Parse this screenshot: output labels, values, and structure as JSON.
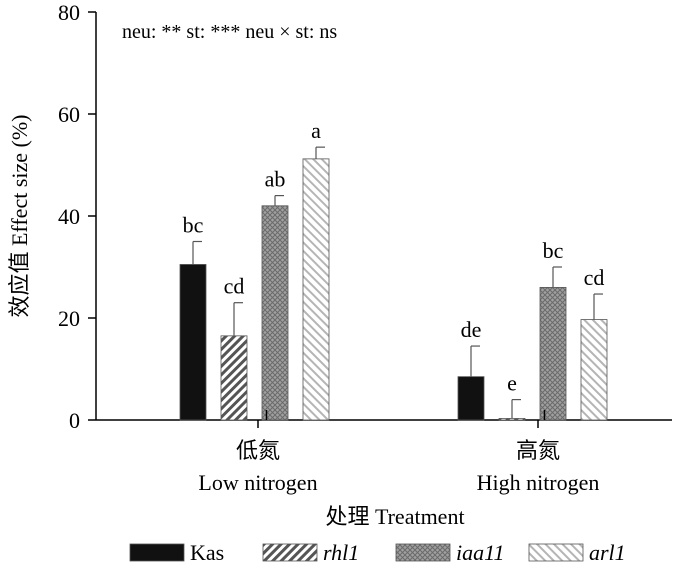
{
  "chart_data": {
    "type": "bar",
    "annotation": "neu: ** st: *** neu × st: ns",
    "ylabel": "效应值 Effect size (%)",
    "xlabel": "处理 Treatment",
    "ylim": [
      0,
      80
    ],
    "yticks": [
      "0",
      "20",
      "40",
      "60",
      "80"
    ],
    "categories": [
      {
        "cn": "低氮",
        "en": "Low nitrogen"
      },
      {
        "cn": "高氮",
        "en": "High nitrogen"
      }
    ],
    "series": [
      {
        "name": "Kas",
        "italic": false,
        "color": "#111111",
        "pattern": "solid",
        "values": [
          30.5,
          8.5
        ],
        "errors": [
          4.5,
          6.0
        ],
        "letters": [
          "bc",
          "de"
        ]
      },
      {
        "name": "rhl1",
        "italic": true,
        "color": "#a8a8a8",
        "pattern": "diag-dense",
        "values": [
          16.5,
          0.3
        ],
        "errors": [
          6.5,
          3.7
        ],
        "letters": [
          "cd",
          "e"
        ]
      },
      {
        "name": "iaa11",
        "italic": true,
        "color": "#9a9a9a",
        "pattern": "crosshatch",
        "values": [
          42.0,
          26.0
        ],
        "errors": [
          2.0,
          4.0
        ],
        "letters": [
          "ab",
          "bc"
        ]
      },
      {
        "name": "arl1",
        "italic": true,
        "color": "#d0d0d0",
        "pattern": "diag-light",
        "values": [
          51.2,
          19.7
        ],
        "errors": [
          2.3,
          5.0
        ],
        "letters": [
          "a",
          "cd"
        ]
      }
    ],
    "grid": false,
    "legend": "bottom"
  }
}
